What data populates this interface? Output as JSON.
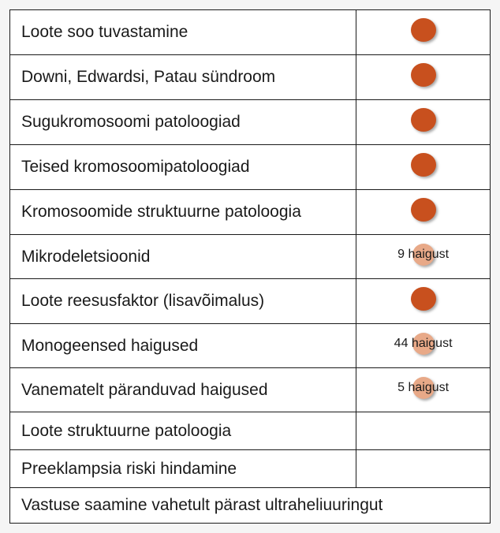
{
  "colors": {
    "dot_solid": "#c8501e",
    "dot_faded": "#e8a988",
    "border": "#1a1a1a",
    "text": "#1a1a1a",
    "bg": "#ffffff"
  },
  "dot_sizes": {
    "solid_w": 32,
    "solid_h": 30,
    "faded_w": 28,
    "faded_h": 28
  },
  "rows": [
    {
      "label": "Loote soo tuvastamine",
      "status": "solid"
    },
    {
      "label": "Downi, Edwardsi, Patau sündroom",
      "status": "solid"
    },
    {
      "label": "Sugukromosoomi patoloogiad",
      "status": "solid"
    },
    {
      "label": "Teised kromosoomipatoloogiad",
      "status": "solid"
    },
    {
      "label": "Kromosoomide struktuurne patoloogia",
      "status": "solid"
    },
    {
      "label": "Mikrodeletsioonid",
      "status": "faded",
      "overlay": "9 haigust"
    },
    {
      "label": "Loote reesusfaktor (lisavõimalus)",
      "status": "solid"
    },
    {
      "label": "Monogeensed haigused",
      "status": "faded",
      "overlay": "44 haigust"
    },
    {
      "label": "Vanematelt päranduvad haigused",
      "status": "faded",
      "overlay": "5 haigust"
    },
    {
      "label": "Loote struktuurne patoloogia",
      "status": "empty"
    },
    {
      "label": "Preeklampsia riski hindamine",
      "status": "empty"
    }
  ],
  "footer": "Vastuse saamine vahetult pärast ultraheliuuringut"
}
